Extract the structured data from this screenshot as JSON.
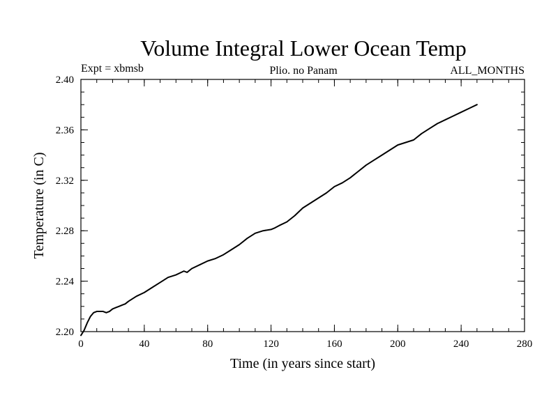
{
  "chart_data": {
    "type": "line",
    "title": "Volume Integral Lower Ocean Temp",
    "subtitle_left": "Expt = xbmsb",
    "subtitle_center": "Plio. no Panam",
    "subtitle_right": "ALL_MONTHS",
    "xlabel": "Time (in years since start)",
    "ylabel": "Temperature (in C)",
    "xlim": [
      0,
      280
    ],
    "ylim": [
      2.2,
      2.4
    ],
    "xticks": [
      0,
      40,
      80,
      120,
      160,
      200,
      240,
      280
    ],
    "yticks": [
      2.2,
      2.24,
      2.28,
      2.32,
      2.36,
      2.4
    ],
    "xtick_labels": [
      "0",
      "40",
      "80",
      "120",
      "160",
      "200",
      "240",
      "280"
    ],
    "ytick_labels": [
      "2.20",
      "2.24",
      "2.28",
      "2.32",
      "2.36",
      "2.40"
    ],
    "x_minor_step": 10,
    "y_minor_step": 0.01,
    "grid": false,
    "series": [
      {
        "color": "#000000",
        "x": [
          0,
          2,
          4,
          6,
          8,
          10,
          12,
          14,
          16,
          18,
          20,
          22,
          24,
          26,
          28,
          30,
          35,
          40,
          45,
          50,
          55,
          60,
          65,
          67,
          70,
          75,
          80,
          85,
          90,
          95,
          100,
          105,
          110,
          115,
          120,
          122,
          125,
          130,
          135,
          140,
          145,
          150,
          155,
          160,
          165,
          170,
          175,
          180,
          185,
          190,
          195,
          200,
          205,
          210,
          215,
          220,
          225,
          230,
          235,
          240,
          245,
          250
        ],
        "y": [
          2.197,
          2.201,
          2.207,
          2.212,
          2.215,
          2.216,
          2.216,
          2.216,
          2.215,
          2.216,
          2.218,
          2.219,
          2.22,
          2.221,
          2.222,
          2.224,
          2.228,
          2.231,
          2.235,
          2.239,
          2.243,
          2.245,
          2.248,
          2.247,
          2.25,
          2.253,
          2.256,
          2.258,
          2.261,
          2.265,
          2.269,
          2.274,
          2.278,
          2.28,
          2.281,
          2.282,
          2.284,
          2.287,
          2.292,
          2.298,
          2.302,
          2.306,
          2.31,
          2.315,
          2.318,
          2.322,
          2.327,
          2.332,
          2.336,
          2.34,
          2.344,
          2.348,
          2.35,
          2.352,
          2.357,
          2.361,
          2.365,
          2.368,
          2.371,
          2.374,
          2.377,
          2.38
        ]
      }
    ]
  }
}
